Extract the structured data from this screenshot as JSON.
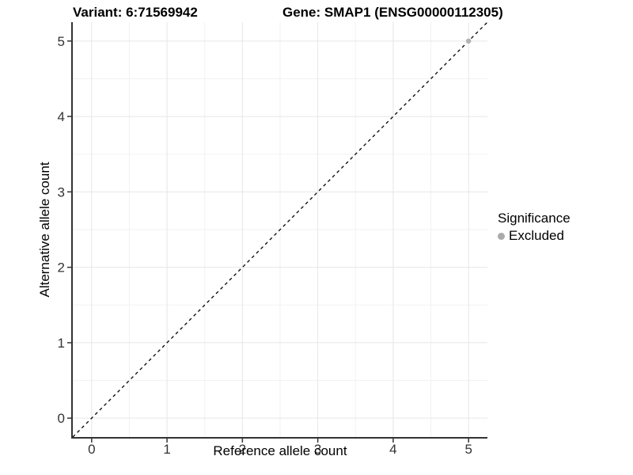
{
  "chart_data": {
    "type": "scatter",
    "titles": {
      "left": "Variant: 6:71569942",
      "right": "Gene: SMAP1 (ENSG00000112305)"
    },
    "xlabel": "Reference allele count",
    "ylabel": "Alternative allele count",
    "xlim": [
      -0.25,
      5.25
    ],
    "ylim": [
      -0.25,
      5.25
    ],
    "x_ticks": [
      0,
      1,
      2,
      3,
      4,
      5
    ],
    "y_ticks": [
      0,
      1,
      2,
      3,
      4,
      5
    ],
    "x_minor": [
      0.5,
      1.5,
      2.5,
      3.5,
      4.5
    ],
    "y_minor": [
      0.5,
      1.5,
      2.5,
      3.5,
      4.5
    ],
    "grid": {
      "major": true,
      "minor": true
    },
    "identity_line": {
      "style": "dashed",
      "slope": 1,
      "intercept": 0
    },
    "series": [
      {
        "name": "Excluded",
        "color": "#b3b3b3",
        "points": [
          {
            "x": 5,
            "y": 5
          }
        ]
      }
    ],
    "legend": {
      "title": "Significance",
      "position": "right",
      "entries": [
        {
          "label": "Excluded",
          "color": "#aaaaaa",
          "marker": "circle"
        }
      ]
    },
    "colors": {
      "grid_major": "#e6e6e6",
      "grid_minor": "#f2f2f2",
      "axis": "#333333",
      "tick_label": "#333333",
      "title": "#000000",
      "diagonal": "#000000"
    }
  }
}
